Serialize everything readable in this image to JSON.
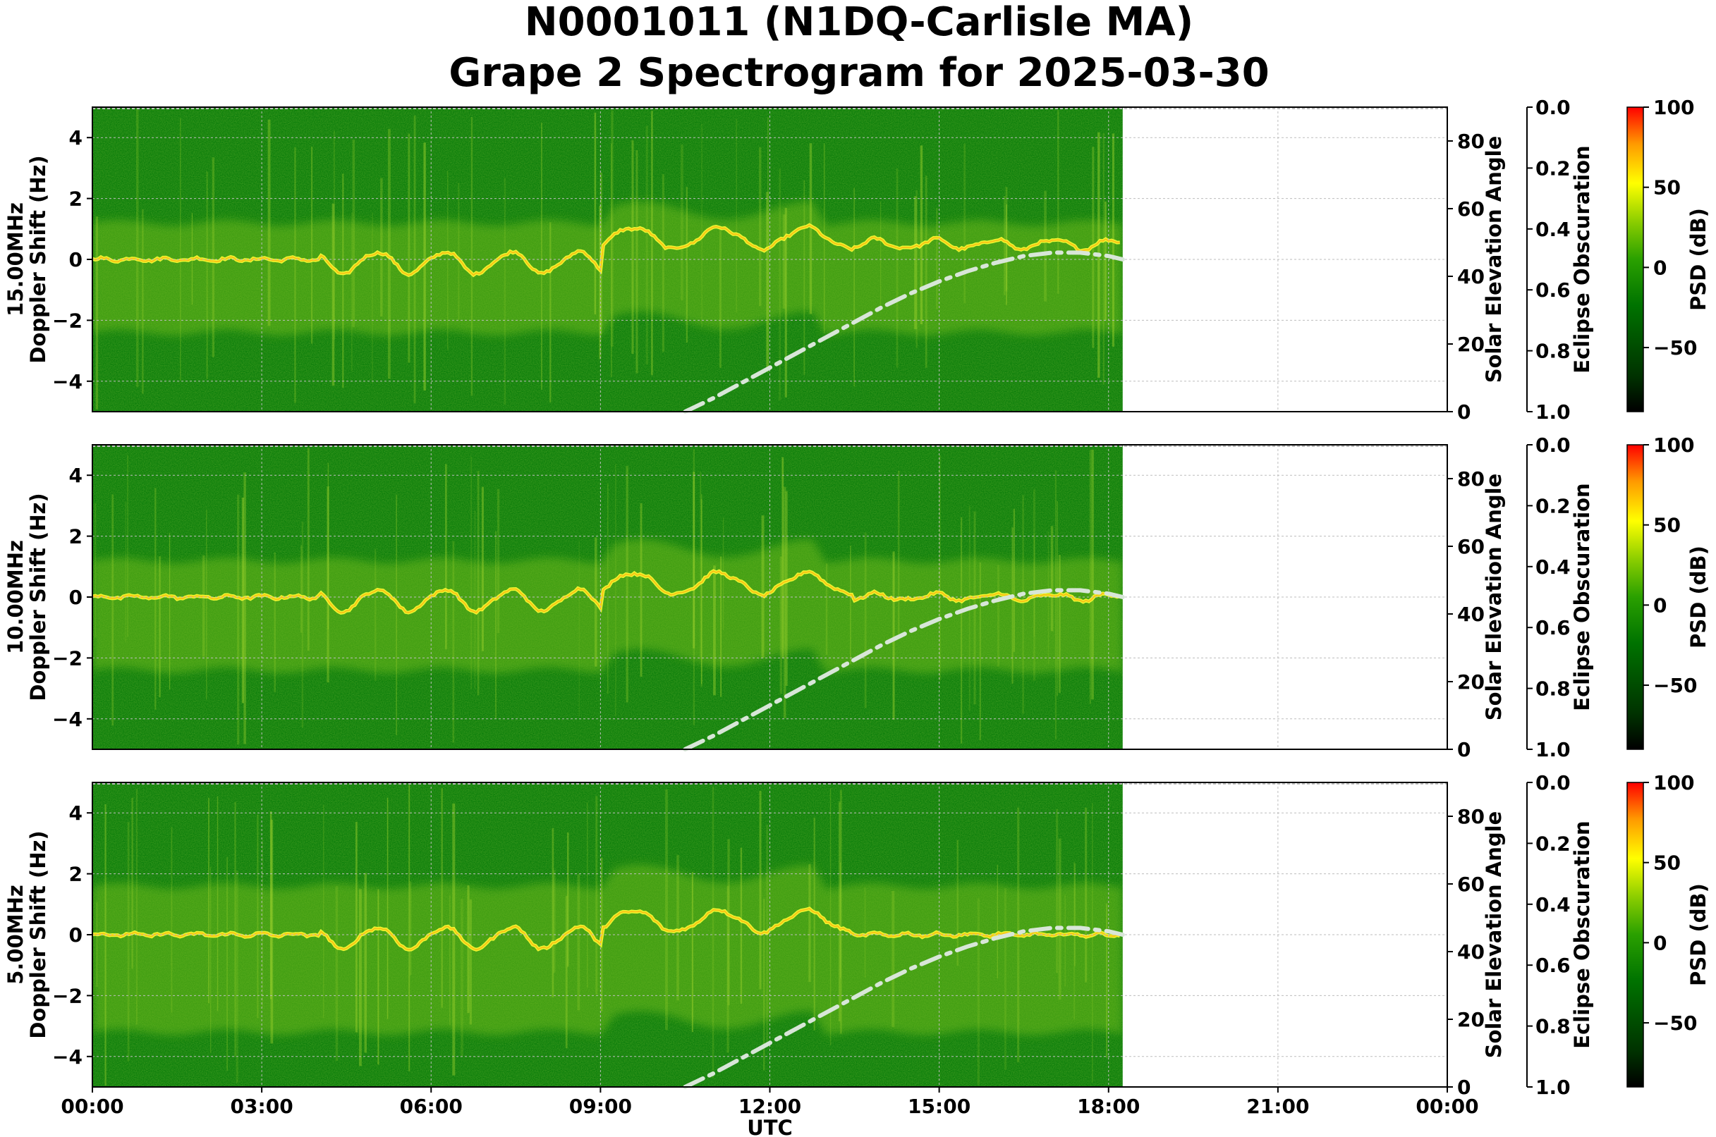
{
  "title_line1": "N0001011 (N1DQ-Carlisle MA)",
  "title_line2": "Grape 2 Spectrogram for 2025-03-30",
  "colors": {
    "background": "#ffffff",
    "spectrogram_base": "#0a7d0a",
    "solar_curve": "#d8e6d8",
    "grid": "#bdbdbd",
    "colormap": [
      "#000000",
      "#004400",
      "#008000",
      "#66c000",
      "#ffff00",
      "#ff8000",
      "#ff0000"
    ]
  },
  "chart_data": [
    {
      "type": "heatmap",
      "frequency_label": "15.00MHz",
      "ylabel": "Doppler Shift (Hz)",
      "ylim": [
        -5,
        5
      ],
      "yticks": [
        4,
        2,
        0,
        -2,
        -4
      ],
      "right_ylabel": "Solar Elevation Angle",
      "right_ylim": [
        0,
        90
      ],
      "right_yticks": [
        80,
        60,
        40,
        20,
        0
      ],
      "eclipse_label": "Eclipse Obscuration",
      "eclipse_ticks": [
        "0.0",
        "0.2",
        "0.4",
        "0.6",
        "0.8",
        "1.0"
      ],
      "colorbar_label": "PSD (dB)",
      "colorbar_range": [
        -90,
        100
      ],
      "colorbar_ticks": [
        100,
        50,
        0,
        -50
      ],
      "data_end_utc_hours": 18.25,
      "grid": true
    },
    {
      "type": "heatmap",
      "frequency_label": "10.00MHz",
      "ylabel": "Doppler Shift (Hz)",
      "ylim": [
        -5,
        5
      ],
      "yticks": [
        4,
        2,
        0,
        -2,
        -4
      ],
      "right_ylabel": "Solar Elevation Angle",
      "right_ylim": [
        0,
        90
      ],
      "right_yticks": [
        80,
        60,
        40,
        20,
        0
      ],
      "eclipse_label": "Eclipse Obscuration",
      "eclipse_ticks": [
        "0.0",
        "0.2",
        "0.4",
        "0.6",
        "0.8",
        "1.0"
      ],
      "colorbar_label": "PSD (dB)",
      "colorbar_range": [
        -90,
        100
      ],
      "colorbar_ticks": [
        100,
        50,
        0,
        -50
      ],
      "data_end_utc_hours": 18.25,
      "grid": true
    },
    {
      "type": "heatmap",
      "frequency_label": "5.00MHz",
      "ylabel": "Doppler Shift (Hz)",
      "ylim": [
        -5,
        5
      ],
      "yticks": [
        4,
        2,
        0,
        -2,
        -4
      ],
      "right_ylabel": "Solar Elevation Angle",
      "right_ylim": [
        0,
        90
      ],
      "right_yticks": [
        80,
        60,
        40,
        20,
        0
      ],
      "eclipse_label": "Eclipse Obscuration",
      "eclipse_ticks": [
        "0.0",
        "0.2",
        "0.4",
        "0.6",
        "0.8",
        "1.0"
      ],
      "colorbar_label": "PSD (dB)",
      "colorbar_range": [
        -90,
        100
      ],
      "colorbar_ticks": [
        100,
        50,
        0,
        -50
      ],
      "data_end_utc_hours": 18.25,
      "grid": true,
      "xlabel": "UTC",
      "xticks": [
        "00:00",
        "03:00",
        "06:00",
        "09:00",
        "12:00",
        "15:00",
        "18:00",
        "21:00",
        "00:00"
      ]
    }
  ],
  "solar_elevation_curve": {
    "x_utc_hours": [
      10.5,
      11,
      11.5,
      12,
      12.5,
      13,
      13.5,
      14,
      14.5,
      15,
      15.5,
      16,
      16.5,
      17,
      17.5,
      18,
      18.25
    ],
    "y_degrees": [
      0,
      4,
      8.5,
      13,
      17.5,
      22,
      26.5,
      31,
      35,
      38.5,
      41.5,
      44,
      46,
      47,
      47,
      46,
      45
    ]
  }
}
